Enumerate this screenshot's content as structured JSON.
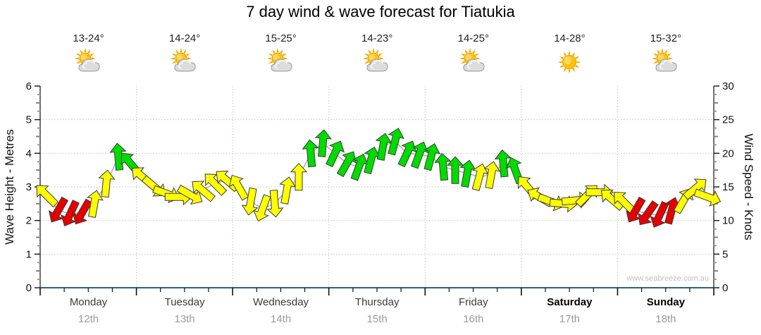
{
  "title": "7 day wind & wave forecast for Tiatukia",
  "watermark": "www.seabreeze.com.au",
  "chart_data": {
    "type": "line",
    "subtype": "wind-arrow-forecast",
    "title": "7 day wind & wave forecast for Tiatukia",
    "left_axis": {
      "label": "Wave Height - Metres",
      "min": 0,
      "max": 6,
      "major_tick": 1,
      "minor_tick": 0.25
    },
    "right_axis": {
      "label": "Wind Speed - Knots",
      "min": 0,
      "max": 30,
      "major_tick": 5,
      "minor_tick": 1.25
    },
    "x_axis": {
      "tick_interval_hours": 6,
      "day_boundary_gridlines": true
    },
    "dual_axis_ratio_knots_per_metre": 5,
    "days": [
      {
        "name": "Monday",
        "date": "12th",
        "temp_range": "13-24°",
        "weather_icon": "partly-cloudy-icon",
        "weekend": false
      },
      {
        "name": "Tuesday",
        "date": "13th",
        "temp_range": "14-24°",
        "weather_icon": "partly-cloudy-icon",
        "weekend": false
      },
      {
        "name": "Wednesday",
        "date": "14th",
        "temp_range": "15-25°",
        "weather_icon": "partly-cloudy-icon",
        "weekend": false
      },
      {
        "name": "Thursday",
        "date": "15th",
        "temp_range": "14-23°",
        "weather_icon": "partly-cloudy-icon",
        "weekend": false
      },
      {
        "name": "Friday",
        "date": "16th",
        "temp_range": "14-25°",
        "weather_icon": "partly-cloudy-icon",
        "weekend": false
      },
      {
        "name": "Saturday",
        "date": "17th",
        "temp_range": "14-28°",
        "weather_icon": "sunny-icon",
        "weekend": true
      },
      {
        "name": "Sunday",
        "date": "18th",
        "temp_range": "15-32°",
        "weather_icon": "partly-cloudy-icon",
        "weekend": true
      }
    ],
    "series": [
      {
        "name": "wind",
        "sample_interval_hours": 3,
        "speeds_knots": [
          13.8,
          11.5,
          11.0,
          11.2,
          12.5,
          15.5,
          19.5,
          18.5,
          16.5,
          15.0,
          14.0,
          13.5,
          13.8,
          14.5,
          15.5,
          16.0,
          15.0,
          12.8,
          11.8,
          12.5,
          14.5,
          16.5,
          20.0,
          21.5,
          20.0,
          18.5,
          18.0,
          19.0,
          21.0,
          21.8,
          20.0,
          19.8,
          19.5,
          18.0,
          17.5,
          17.0,
          16.5,
          16.8,
          18.5,
          17.5,
          15.0,
          13.5,
          12.8,
          12.5,
          13.0,
          13.8,
          14.2,
          13.2,
          12.8,
          11.5,
          11.0,
          10.8,
          11.5,
          13.0,
          14.8,
          13.5
        ],
        "directions_deg_cw_from_up": [
          315,
          210,
          205,
          210,
          10,
          5,
          355,
          320,
          310,
          130,
          110,
          90,
          120,
          310,
          315,
          310,
          330,
          190,
          200,
          175,
          10,
          0,
          355,
          5,
          25,
          30,
          20,
          15,
          10,
          15,
          25,
          20,
          15,
          355,
          0,
          10,
          15,
          10,
          355,
          340,
          320,
          300,
          110,
          95,
          85,
          45,
          90,
          310,
          315,
          210,
          215,
          205,
          15,
          30,
          50,
          110
        ],
        "colors": [
          "Y",
          "R",
          "R",
          "R",
          "Y",
          "Y",
          "G",
          "G",
          "Y",
          "Y",
          "Y",
          "Y",
          "Y",
          "Y",
          "Y",
          "Y",
          "Y",
          "Y",
          "Y",
          "Y",
          "Y",
          "Y",
          "G",
          "G",
          "G",
          "G",
          "G",
          "G",
          "G",
          "G",
          "G",
          "G",
          "G",
          "G",
          "G",
          "G",
          "Y",
          "Y",
          "G",
          "G",
          "Y",
          "Y",
          "Y",
          "Y",
          "Y",
          "Y",
          "Y",
          "Y",
          "Y",
          "R",
          "R",
          "R",
          "R",
          "Y",
          "Y",
          "Y"
        ]
      }
    ],
    "color_map": {
      "R": "#e40000",
      "Y": "#ffff00",
      "G": "#00dc00"
    },
    "style_colors": {
      "x_axis_line": "#2e6090",
      "y_axis_line": "#333333",
      "gridline": "#c3c3c3",
      "connector_line": "#aeaeae",
      "arrow_outline": "#3a3a3a"
    }
  }
}
